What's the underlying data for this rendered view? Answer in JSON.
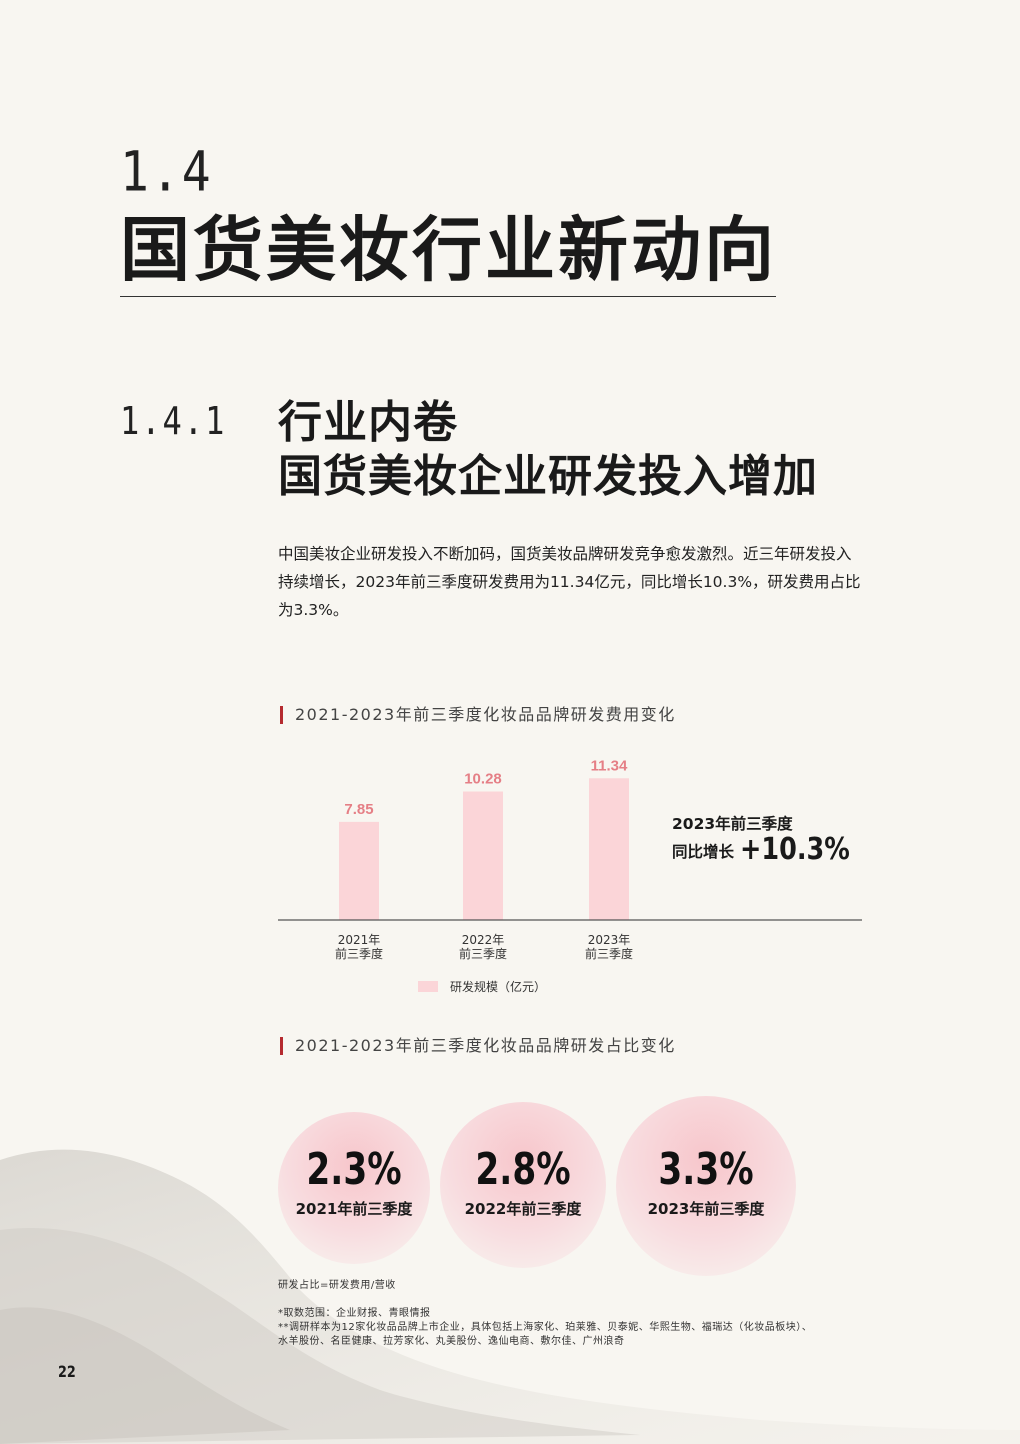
{
  "section": {
    "number": "1.4",
    "title": "国货美妆行业新动向"
  },
  "subsection": {
    "number": "1.4.1",
    "heading_line1": "行业内卷",
    "heading_line2": "国货美妆企业研发投入增加",
    "body": "中国美妆企业研发投入不断加码，国货美妆品牌研发竞争愈发激烈。近三年研发投入持续增长，2023年前三季度研发费用为11.34亿元，同比增长10.3%，研发费用占比为3.3%。"
  },
  "chart1": {
    "title": "2021-2023年前三季度化妆品品牌研发费用变化",
    "growth_label_line1": "2023年前三季度",
    "growth_label_line2": "同比增长",
    "growth_value": "+10.3%",
    "bar_color": "#fbd5d8",
    "label_color": "#e57f86"
  },
  "chart2": {
    "title": "2021-2023年前三季度化妆品品牌研发占比变化",
    "circles": [
      {
        "value": "2.3%",
        "label": "2021年前三季度"
      },
      {
        "value": "2.8%",
        "label": "2022年前三季度"
      },
      {
        "value": "3.3%",
        "label": "2023年前三季度"
      }
    ]
  },
  "chart_data": [
    {
      "type": "bar",
      "title": "2021-2023年前三季度化妆品品牌研发费用变化",
      "categories": [
        [
          "2021年",
          "前三季度"
        ],
        [
          "2022年",
          "前三季度"
        ],
        [
          "2023年",
          "前三季度"
        ]
      ],
      "series": [
        {
          "name": "研发规模（亿元）",
          "values": [
            7.85,
            10.28,
            11.34
          ]
        }
      ],
      "data_labels": [
        "7.85",
        "10.28",
        "11.34"
      ],
      "ylim": [
        0,
        14
      ],
      "grid": false,
      "legend": "bottom-center"
    },
    {
      "type": "table",
      "title": "2021-2023年前三季度化妆品品牌研发占比变化",
      "categories": [
        "2021年前三季度",
        "2022年前三季度",
        "2023年前三季度"
      ],
      "values": [
        2.3,
        2.8,
        3.3
      ],
      "unit": "%"
    }
  ],
  "notes": {
    "formula": "研发占比=研发费用/营收",
    "source": "*取数范围：企业财报、青眼情报",
    "sample_line1": "**调研样本为12家化妆品品牌上市企业，具体包括上海家化、珀莱雅、贝泰妮、华熙生物、福瑞达（化妆品板块）、",
    "sample_line2": "水羊股份、名臣健康、拉芳家化、丸美股份、逸仙电商、敷尔佳、广州浪奇"
  },
  "page_number": "22"
}
